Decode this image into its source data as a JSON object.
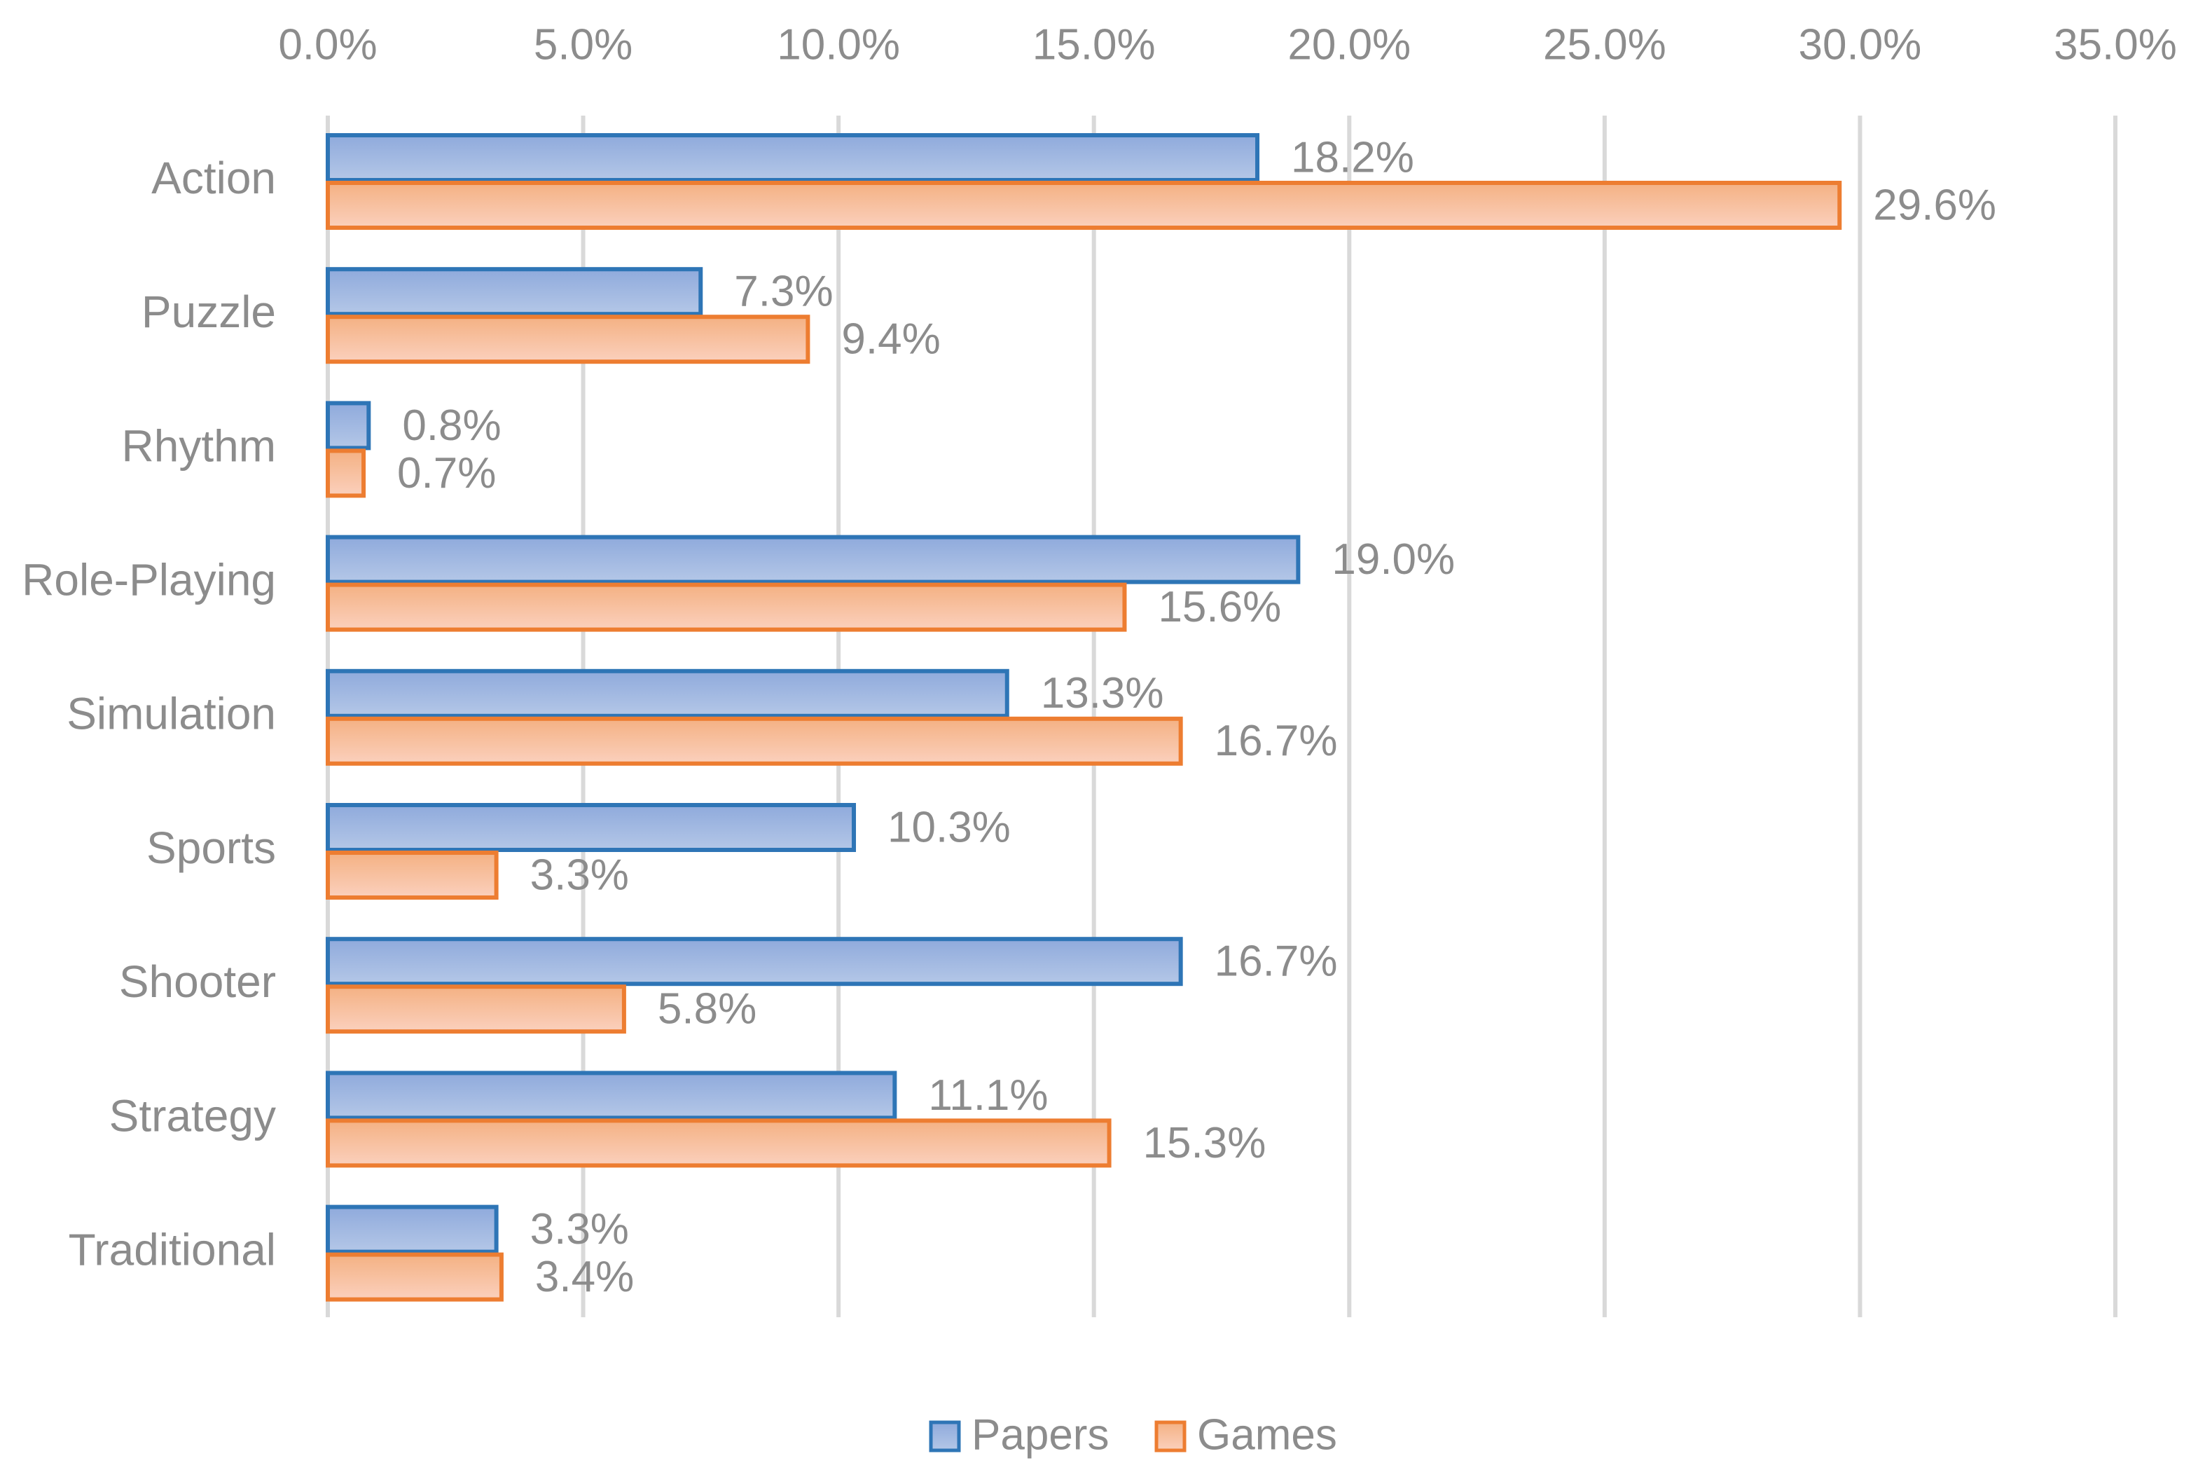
{
  "chart_data": {
    "type": "bar",
    "orientation": "horizontal",
    "title": "",
    "xlabel": "",
    "ylabel": "",
    "xlim": [
      0,
      35
    ],
    "x_ticks": [
      0,
      5,
      10,
      15,
      20,
      25,
      30,
      35
    ],
    "x_tick_labels": [
      "0.0%",
      "5.0%",
      "10.0%",
      "15.0%",
      "20.0%",
      "25.0%",
      "30.0%",
      "35.0%"
    ],
    "x_axis_position": "top",
    "grid": "vertical",
    "legend_position": "bottom-center",
    "categories": [
      "Action",
      "Puzzle",
      "Rhythm",
      "Role-Playing",
      "Simulation",
      "Sports",
      "Shooter",
      "Strategy",
      "Traditional"
    ],
    "series": [
      {
        "name": "Papers",
        "color_fill_top": "#b4c7e7",
        "color_fill_bottom": "#8faadc",
        "color_border": "#2e75b6",
        "values": [
          18.2,
          7.3,
          0.8,
          19.0,
          13.3,
          10.3,
          16.7,
          11.1,
          3.3
        ],
        "labels": [
          "18.2%",
          "7.3%",
          "0.8%",
          "19.0%",
          "13.3%",
          "10.3%",
          "16.7%",
          "11.1%",
          "3.3%"
        ]
      },
      {
        "name": "Games",
        "color_fill_top": "#fbd0bd",
        "color_fill_bottom": "#f4b183",
        "color_border": "#ed7d31",
        "values": [
          29.6,
          9.4,
          0.7,
          15.6,
          16.7,
          3.3,
          5.8,
          15.3,
          3.4
        ],
        "labels": [
          "29.6%",
          "9.4%",
          "0.7%",
          "15.6%",
          "16.7%",
          "3.3%",
          "5.8%",
          "15.3%",
          "3.4%"
        ]
      }
    ]
  }
}
